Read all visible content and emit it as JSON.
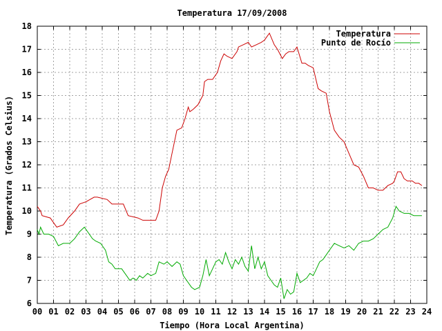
{
  "chart_data": {
    "type": "line",
    "title": "Temperatura 17/09/2008",
    "xlabel": "Tiempo (Hora Local Argentina)",
    "ylabel": "Temperatura (Grados Celsius)",
    "xlim": [
      0,
      24
    ],
    "ylim": [
      6,
      18
    ],
    "x_ticks": [
      "00",
      "01",
      "02",
      "03",
      "04",
      "05",
      "06",
      "07",
      "08",
      "09",
      "10",
      "11",
      "12",
      "13",
      "14",
      "15",
      "16",
      "17",
      "18",
      "19",
      "20",
      "21",
      "22",
      "23",
      "24"
    ],
    "y_ticks": [
      "6",
      "7",
      "8",
      "9",
      "10",
      "11",
      "12",
      "13",
      "14",
      "15",
      "16",
      "17",
      "18"
    ],
    "grid": true,
    "legend_position": "top-right",
    "series": [
      {
        "name": "Temperatura",
        "color": "#cc0000",
        "x": [
          0,
          0.2,
          0.3,
          0.8,
          1.0,
          1.2,
          1.6,
          1.9,
          2.3,
          2.6,
          3.0,
          3.5,
          3.7,
          4.3,
          4.6,
          5.3,
          5.6,
          6.2,
          6.5,
          7.3,
          7.5,
          7.7,
          7.9,
          8.1,
          8.3,
          8.6,
          8.9,
          9.1,
          9.3,
          9.4,
          9.6,
          9.9,
          10.2,
          10.3,
          10.5,
          10.8,
          11.1,
          11.3,
          11.5,
          11.7,
          12.0,
          12.3,
          12.4,
          12.7,
          13.0,
          13.2,
          13.5,
          13.8,
          14.0,
          14.3,
          14.6,
          14.8,
          15.1,
          15.3,
          15.5,
          15.8,
          16.0,
          16.3,
          16.5,
          16.7,
          17.0,
          17.3,
          17.5,
          17.8,
          18.0,
          18.3,
          18.6,
          18.9,
          19.2,
          19.5,
          19.8,
          20.1,
          20.4,
          20.7,
          21.0,
          21.3,
          21.6,
          21.9,
          22.0,
          22.2,
          22.4,
          22.6,
          22.8,
          23.1,
          23.3,
          23.5,
          23.7
        ],
        "y": [
          10.2,
          10.0,
          9.8,
          9.7,
          9.5,
          9.3,
          9.4,
          9.7,
          10.0,
          10.3,
          10.4,
          10.6,
          10.6,
          10.5,
          10.3,
          10.3,
          9.8,
          9.7,
          9.6,
          9.6,
          10.0,
          11.0,
          11.5,
          11.8,
          12.5,
          13.5,
          13.6,
          14.0,
          14.5,
          14.3,
          14.4,
          14.6,
          15.0,
          15.6,
          15.7,
          15.7,
          16.0,
          16.5,
          16.8,
          16.7,
          16.6,
          16.9,
          17.1,
          17.2,
          17.3,
          17.1,
          17.2,
          17.3,
          17.4,
          17.7,
          17.2,
          17.0,
          16.6,
          16.8,
          16.9,
          16.9,
          17.1,
          16.4,
          16.4,
          16.3,
          16.2,
          15.3,
          15.2,
          15.1,
          14.3,
          13.5,
          13.2,
          13.0,
          12.5,
          12.0,
          11.9,
          11.5,
          11.0,
          11.0,
          10.9,
          10.9,
          11.1,
          11.2,
          11.3,
          11.7,
          11.7,
          11.4,
          11.3,
          11.3,
          11.2,
          11.2,
          11.1
        ]
      },
      {
        "name": "Punto de Rocío",
        "color": "#00aa00",
        "x": [
          0,
          0.1,
          0.2,
          0.4,
          0.7,
          1.0,
          1.3,
          1.6,
          2.0,
          2.3,
          2.6,
          2.9,
          3.1,
          3.4,
          3.6,
          3.9,
          4.2,
          4.4,
          4.6,
          4.8,
          5.0,
          5.2,
          5.5,
          5.7,
          5.9,
          6.1,
          6.3,
          6.5,
          6.8,
          7.0,
          7.3,
          7.5,
          7.8,
          8.0,
          8.3,
          8.6,
          8.8,
          9.0,
          9.2,
          9.5,
          9.7,
          10.0,
          10.2,
          10.4,
          10.6,
          10.8,
          11.0,
          11.2,
          11.4,
          11.6,
          11.8,
          12.0,
          12.2,
          12.4,
          12.6,
          12.8,
          13.0,
          13.2,
          13.4,
          13.6,
          13.8,
          14.0,
          14.2,
          14.4,
          14.6,
          14.8,
          15.0,
          15.2,
          15.4,
          15.6,
          15.8,
          16.0,
          16.2,
          16.4,
          16.6,
          16.8,
          17.0,
          17.2,
          17.4,
          17.6,
          17.8,
          18.0,
          18.3,
          18.6,
          18.9,
          19.2,
          19.5,
          19.8,
          20.1,
          20.4,
          20.7,
          21.0,
          21.3,
          21.6,
          21.9,
          22.1,
          22.3,
          22.6,
          22.9,
          23.2,
          23.5,
          23.7
        ],
        "y": [
          9.2,
          9.0,
          9.3,
          9.0,
          9.0,
          8.9,
          8.5,
          8.6,
          8.6,
          8.8,
          9.1,
          9.3,
          9.1,
          8.8,
          8.7,
          8.6,
          8.3,
          7.8,
          7.7,
          7.5,
          7.5,
          7.5,
          7.2,
          7.0,
          7.1,
          7.0,
          7.2,
          7.1,
          7.3,
          7.2,
          7.3,
          7.8,
          7.7,
          7.8,
          7.6,
          7.8,
          7.7,
          7.2,
          7.0,
          6.7,
          6.6,
          6.7,
          7.2,
          7.9,
          7.2,
          7.5,
          7.8,
          7.9,
          7.7,
          8.2,
          7.8,
          7.5,
          7.9,
          7.7,
          8.0,
          7.6,
          7.4,
          8.5,
          7.5,
          8.0,
          7.5,
          7.8,
          7.2,
          7.0,
          6.8,
          6.7,
          7.1,
          6.2,
          6.6,
          6.4,
          6.5,
          7.3,
          6.9,
          7.0,
          7.1,
          7.3,
          7.2,
          7.5,
          7.8,
          7.9,
          8.1,
          8.3,
          8.6,
          8.5,
          8.4,
          8.5,
          8.3,
          8.6,
          8.7,
          8.7,
          8.8,
          9.0,
          9.2,
          9.3,
          9.7,
          10.2,
          10.0,
          9.9,
          9.9,
          9.8,
          9.8,
          9.8
        ]
      }
    ]
  }
}
